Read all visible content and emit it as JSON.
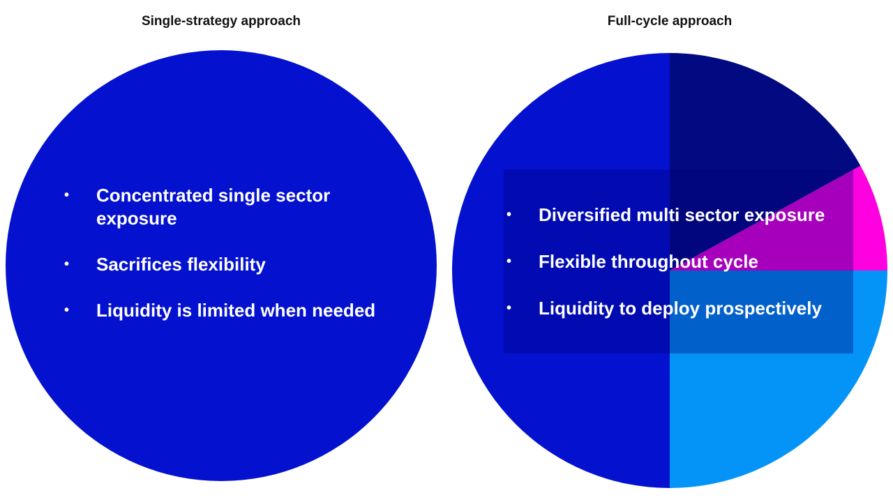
{
  "left_panel": {
    "title": "Single-strategy approach",
    "bullets": [
      "Concentrated single sector exposure",
      "Sacrifices flexibility",
      "Liquidity is limited when needed"
    ]
  },
  "right_panel": {
    "title": "Full-cycle approach",
    "bullets": [
      "Diversified multi sector exposure",
      "Flexible throughout cycle",
      "Liquidity to deploy prospectively"
    ]
  },
  "bullet_glyph": "•",
  "colors": {
    "single_circle": "#0411CF",
    "slice_navy": "#020A82",
    "slice_magenta": "#FF00E0",
    "slice_lightblue": "#0494F8",
    "slice_blue": "#0411CF"
  },
  "chart_data": [
    {
      "type": "pie",
      "title": "Single-strategy approach",
      "values": [
        100
      ],
      "colors": [
        "#0411CF"
      ]
    },
    {
      "type": "pie",
      "title": "Full-cycle approach",
      "start_angle_deg": 0,
      "direction": "clockwise",
      "values": [
        17,
        8,
        25,
        50
      ],
      "colors": [
        "#020A82",
        "#FF00E0",
        "#0494F8",
        "#0411CF"
      ]
    }
  ]
}
